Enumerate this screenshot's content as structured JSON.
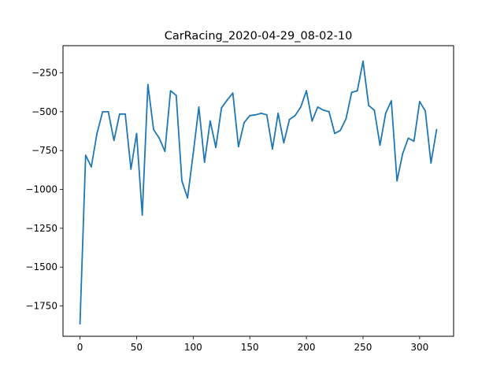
{
  "chart_data": {
    "type": "line",
    "title": "CarRacing_2020-04-29_08-02-10",
    "xlabel": "",
    "ylabel": "",
    "xlim": [
      -15,
      330
    ],
    "ylim": [
      -1945,
      -75
    ],
    "x_ticks": [
      0,
      50,
      100,
      150,
      200,
      250,
      300
    ],
    "y_ticks": [
      -1750,
      -1500,
      -1250,
      -1000,
      -750,
      -500,
      -250
    ],
    "grid": false,
    "line_color": "#1f77b4",
    "series": [
      {
        "x": [
          0,
          5,
          10,
          15,
          20,
          25,
          30,
          35,
          40,
          45,
          50,
          55,
          60,
          65,
          70,
          75,
          80,
          85,
          90,
          95,
          100,
          105,
          110,
          115,
          120,
          125,
          130,
          135,
          140,
          145,
          150,
          155,
          160,
          165,
          170,
          175,
          180,
          185,
          190,
          195,
          200,
          205,
          210,
          215,
          220,
          225,
          230,
          235,
          240,
          245,
          250,
          255,
          260,
          265,
          270,
          275,
          280,
          285,
          290,
          295,
          300,
          305,
          310,
          315
        ],
        "values": [
          -1865,
          -780,
          -855,
          -640,
          -500,
          -500,
          -685,
          -515,
          -515,
          -870,
          -640,
          -1165,
          -325,
          -615,
          -670,
          -755,
          -365,
          -395,
          -945,
          -1055,
          -770,
          -470,
          -825,
          -560,
          -730,
          -475,
          -425,
          -380,
          -725,
          -570,
          -525,
          -520,
          -510,
          -520,
          -740,
          -510,
          -700,
          -550,
          -525,
          -470,
          -365,
          -560,
          -470,
          -490,
          -500,
          -640,
          -620,
          -545,
          -375,
          -365,
          -175,
          -460,
          -490,
          -715,
          -510,
          -430,
          -945,
          -770,
          -670,
          -690,
          -435,
          -495,
          -830,
          -615
        ]
      }
    ]
  }
}
